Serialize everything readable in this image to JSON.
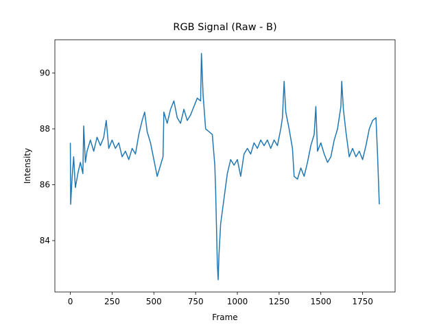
{
  "chart_data": {
    "type": "line",
    "title": "RGB Signal (Raw - B)",
    "x_label": "Frame",
    "y_label": "Intensity",
    "x": [
      0,
      2,
      10,
      20,
      30,
      45,
      60,
      75,
      80,
      90,
      100,
      120,
      140,
      160,
      180,
      200,
      215,
      230,
      250,
      270,
      290,
      310,
      330,
      350,
      370,
      390,
      410,
      430,
      445,
      460,
      480,
      500,
      520,
      540,
      555,
      560,
      580,
      600,
      620,
      640,
      660,
      680,
      700,
      720,
      740,
      760,
      780,
      785,
      795,
      810,
      830,
      850,
      865,
      870,
      880,
      885,
      890,
      900,
      920,
      940,
      960,
      980,
      1000,
      1020,
      1040,
      1060,
      1080,
      1100,
      1120,
      1140,
      1160,
      1180,
      1200,
      1220,
      1240,
      1260,
      1270,
      1280,
      1290,
      1310,
      1330,
      1340,
      1360,
      1380,
      1400,
      1420,
      1440,
      1460,
      1470,
      1480,
      1500,
      1520,
      1540,
      1560,
      1580,
      1600,
      1620,
      1625,
      1635,
      1650,
      1670,
      1690,
      1710,
      1730,
      1750,
      1770,
      1790,
      1810,
      1830,
      1840,
      1850
    ],
    "series": [
      {
        "name": "B",
        "color": "#1f77b4",
        "values": [
          87.5,
          85.3,
          86.2,
          87.0,
          85.9,
          86.4,
          86.8,
          86.4,
          88.1,
          86.8,
          87.2,
          87.6,
          87.2,
          87.7,
          87.4,
          87.7,
          88.3,
          87.3,
          87.6,
          87.3,
          87.5,
          87.0,
          87.2,
          86.9,
          87.3,
          87.1,
          87.8,
          88.3,
          88.6,
          87.9,
          87.5,
          86.9,
          86.3,
          86.7,
          87.0,
          88.6,
          88.2,
          88.7,
          89.0,
          88.4,
          88.2,
          88.7,
          88.3,
          88.5,
          88.8,
          89.1,
          89.0,
          90.7,
          89.2,
          88.0,
          87.9,
          87.8,
          86.7,
          85.8,
          83.2,
          82.6,
          83.5,
          84.6,
          85.5,
          86.4,
          86.9,
          86.7,
          86.9,
          86.3,
          87.1,
          87.3,
          87.1,
          87.5,
          87.3,
          87.6,
          87.4,
          87.6,
          87.3,
          87.6,
          87.4,
          88.0,
          88.4,
          89.7,
          88.6,
          88.0,
          87.3,
          86.3,
          86.2,
          86.6,
          86.3,
          86.8,
          87.4,
          87.8,
          88.8,
          87.2,
          87.5,
          87.1,
          86.8,
          87.0,
          87.6,
          88.0,
          88.8,
          89.7,
          88.7,
          87.9,
          87.0,
          87.3,
          87.0,
          87.2,
          86.9,
          87.4,
          88.0,
          88.3,
          88.4,
          87.0,
          85.3
        ]
      }
    ],
    "xlim": [
      -92.6,
      1944.6
    ],
    "ylim": [
      82.16,
      91.19
    ],
    "xticks": [
      0,
      250,
      500,
      750,
      1000,
      1250,
      1500,
      1750
    ],
    "yticks": [
      84,
      86,
      88,
      90
    ]
  }
}
